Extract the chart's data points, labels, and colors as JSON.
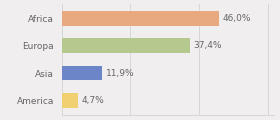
{
  "categories": [
    "Africa",
    "Europa",
    "Asia",
    "America"
  ],
  "values": [
    46.0,
    37.4,
    11.9,
    4.7
  ],
  "labels": [
    "46,0%",
    "37,4%",
    "11,9%",
    "4,7%"
  ],
  "bar_colors": [
    "#e8a97e",
    "#b5c98e",
    "#6b85c8",
    "#f0d070"
  ],
  "background_color": "#f0eeee",
  "bar_height": 0.55,
  "xlim": [
    0,
    62
  ],
  "label_fontsize": 6.5,
  "tick_fontsize": 6.5
}
